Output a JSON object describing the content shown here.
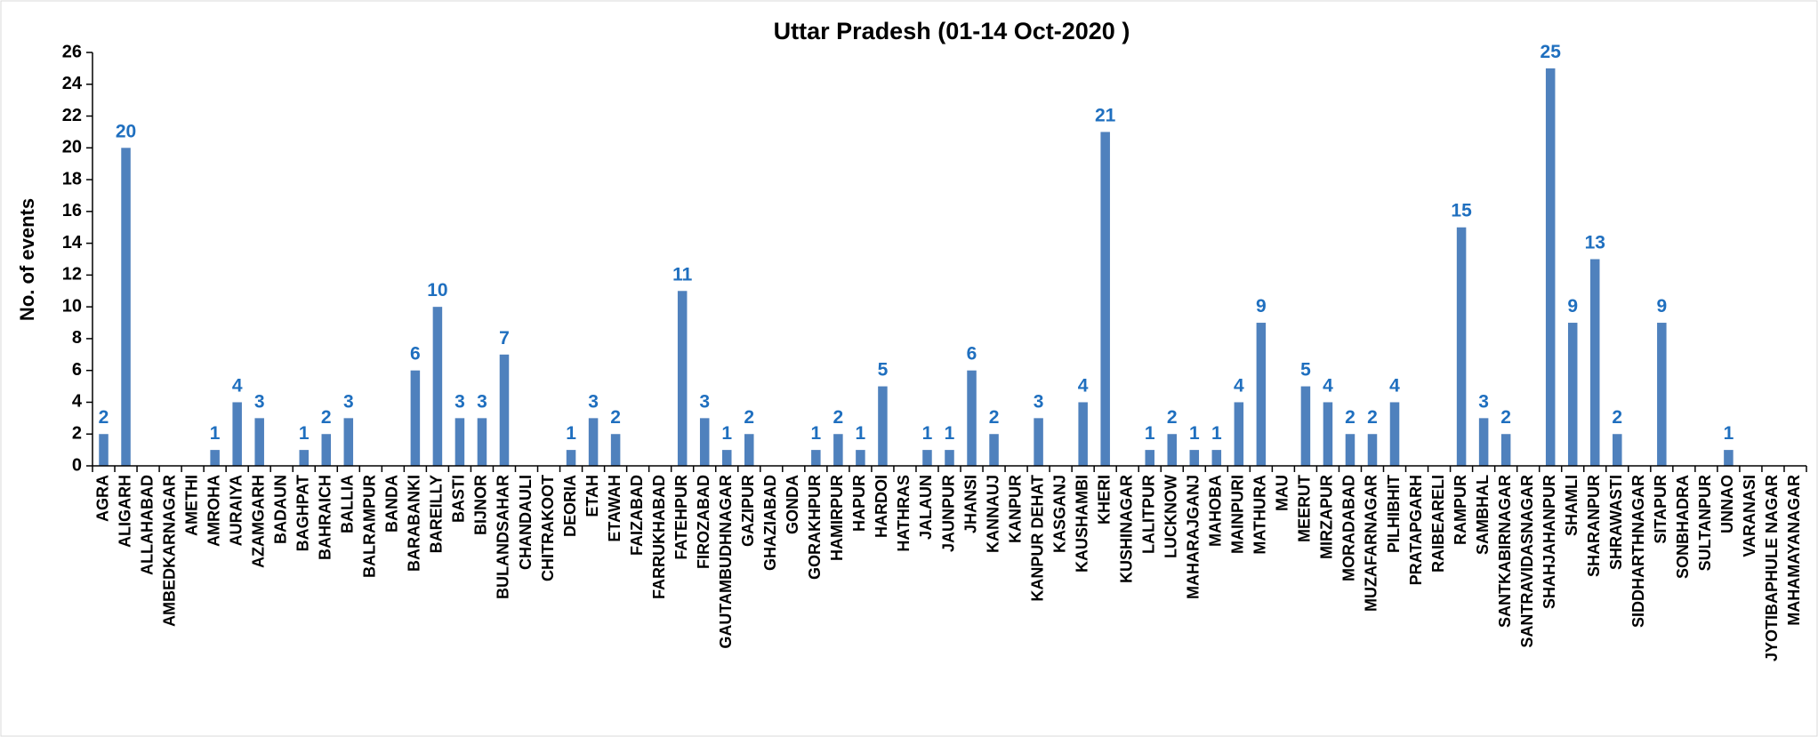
{
  "chart_data": {
    "type": "bar",
    "title": "Uttar Pradesh  (01-14 Oct-2020 )",
    "y_label": "No. of events",
    "color": "#4f81bd",
    "label_color": "#1f6fbf",
    "categories": [
      "AGRA",
      "ALIGARH",
      "ALLAHABAD",
      "AMBEDKARNAGAR",
      "AMETHI",
      "AMROHA",
      "AURAIYA",
      "AZAMGARH",
      "BADAUN",
      "BAGHPAT",
      "BAHRAICH",
      "BALLIA",
      "BALRAMPUR",
      "BANDA",
      "BARABANKI",
      "BAREILLY",
      "BASTI",
      "BIJNOR",
      "BULANDSAHAR",
      "CHANDAULI",
      "CHITRAKOOT",
      "DEORIA",
      "ETAH",
      "ETAWAH",
      "FAIZABAD",
      "FARRUKHABAD",
      "FATEHPUR",
      "FIROZABAD",
      "GAUTAMBUDHNAGAR",
      "GAZIPUR",
      "GHAZIABAD",
      "GONDA",
      "GORAKHPUR",
      "HAMIRPUR",
      "HAPUR",
      "HARDOI",
      "HATHRAS",
      "JALAUN",
      "JAUNPUR",
      "JHANSI",
      "KANNAUJ",
      "KANPUR",
      "KANPUR DEHAT",
      "KASGANJ",
      "KAUSHAMBI",
      "KHERI",
      "KUSHINAGAR",
      "LALITPUR",
      "LUCKNOW",
      "MAHARAJGANJ",
      "MAHOBA",
      "MAINPURI",
      "MATHURA",
      "MAU",
      "MEERUT",
      "MIRZAPUR",
      "MORADABAD",
      "MUZAFARNAGAR",
      "PILHIBHIT",
      "PRATAPGARH",
      "RAIBEARELI",
      "RAMPUR",
      "SAMBHAL",
      "SANTKABIRNAGAR",
      "SANTRAVIDASNAGAR",
      "SHAHJAHANPUR",
      "SHAMLI",
      "SHARANPUR",
      "SHRAWASTI",
      "SIDDHARTHNAGAR",
      "SITAPUR",
      "SONBHADRA",
      "SULTANPUR",
      "UNNAO",
      "VARANASI",
      "JYOTIBAPHULE NAGAR",
      "MAHAMAYANAGAR"
    ],
    "values": [
      2,
      20,
      0,
      0,
      0,
      1,
      4,
      3,
      0,
      1,
      2,
      3,
      0,
      0,
      6,
      10,
      3,
      3,
      7,
      0,
      0,
      1,
      3,
      2,
      0,
      0,
      11,
      3,
      1,
      2,
      0,
      0,
      1,
      2,
      1,
      5,
      0,
      1,
      1,
      6,
      2,
      0,
      3,
      0,
      4,
      21,
      0,
      1,
      2,
      1,
      1,
      4,
      9,
      0,
      5,
      4,
      2,
      2,
      4,
      0,
      0,
      15,
      3,
      2,
      0,
      25,
      9,
      13,
      2,
      0,
      9,
      0,
      0,
      1,
      0,
      0,
      0
    ],
    "ylim": [
      0,
      26
    ],
    "yticks": [
      0,
      2,
      4,
      6,
      8,
      10,
      12,
      14,
      16,
      18,
      20,
      22,
      24,
      26
    ]
  }
}
